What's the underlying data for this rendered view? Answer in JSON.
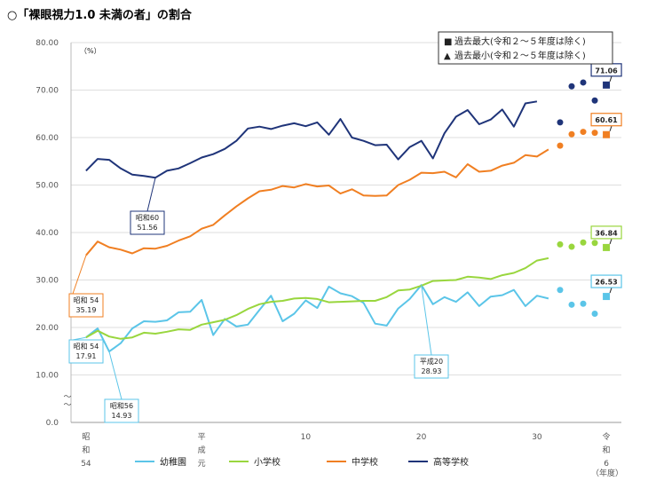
{
  "title": "○「裸眼視力1.0 未満の者」の割合",
  "chart_data": {
    "type": "line",
    "unit_label": "（%）",
    "ylim": [
      0,
      80
    ],
    "yticks": [
      "0.0",
      "10.00",
      "20.00",
      "30.00",
      "40.00",
      "50.00",
      "60.00",
      "70.00",
      "80.00"
    ],
    "x_axis_labels": [
      {
        "x": 1979,
        "text": "昭\n和\n54"
      },
      {
        "x": 1989,
        "text": "平\n成\n元"
      },
      {
        "x": 1998,
        "text": "10"
      },
      {
        "x": 2008,
        "text": "20"
      },
      {
        "x": 2018,
        "text": "30"
      },
      {
        "x": 2024,
        "text": "令\n和\n6"
      }
    ],
    "x_unit": "（年度）",
    "years": [
      1979,
      1980,
      1981,
      1982,
      1983,
      1984,
      1985,
      1986,
      1987,
      1988,
      1989,
      1990,
      1991,
      1992,
      1993,
      1994,
      1995,
      1996,
      1997,
      1998,
      1999,
      2000,
      2001,
      2002,
      2003,
      2004,
      2005,
      2006,
      2007,
      2008,
      2009,
      2010,
      2011,
      2012,
      2013,
      2014,
      2015,
      2016,
      2017,
      2018,
      2019
    ],
    "series": [
      {
        "name": "幼稚園",
        "color": "#5bc5e8",
        "values": [
          17.91,
          19.8,
          14.93,
          16.7,
          19.8,
          21.3,
          21.2,
          21.5,
          23.2,
          23.3,
          25.8,
          18.4,
          21.8,
          20.2,
          20.6,
          23.7,
          26.7,
          21.3,
          22.9,
          25.7,
          24.1,
          28.6,
          27.2,
          26.6,
          25.2,
          20.8,
          20.4,
          24.0,
          26.0,
          28.93,
          24.9,
          26.4,
          25.4,
          27.4,
          24.5,
          26.5,
          26.8,
          27.9,
          24.5,
          26.7,
          26.1
        ],
        "extra": {
          "years": [
            2020,
            2021,
            2022,
            2023,
            2024
          ],
          "values": [
            27.9,
            24.8,
            25.0,
            22.9,
            26.53
          ]
        },
        "annotations": [
          {
            "x": 1979,
            "text": "昭和 54\n17.91"
          },
          {
            "x": 1981,
            "text": "昭和56\n14.93"
          },
          {
            "x": 2008,
            "text": "平成20\n28.93"
          },
          {
            "x": 2024,
            "text": "26.53"
          }
        ]
      },
      {
        "name": "小学校",
        "color": "#99d63e",
        "values": [
          17.91,
          19.3,
          18.1,
          17.6,
          17.9,
          18.9,
          18.7,
          19.1,
          19.6,
          19.5,
          20.6,
          21.1,
          21.6,
          22.6,
          23.9,
          24.9,
          25.4,
          25.6,
          26.1,
          26.2,
          26.0,
          25.3,
          25.4,
          25.5,
          25.6,
          25.6,
          26.4,
          27.8,
          28.0,
          28.8,
          29.8,
          29.9,
          30.0,
          30.7,
          30.5,
          30.2,
          31.0,
          31.5,
          32.5,
          34.1,
          34.6
        ],
        "extra": {
          "years": [
            2020,
            2021,
            2022,
            2023,
            2024
          ],
          "values": [
            37.5,
            37.0,
            37.9,
            37.8,
            36.84
          ]
        },
        "annotations": [
          {
            "x": 2024,
            "text": "36.84"
          }
        ]
      },
      {
        "name": "中学校",
        "color": "#f07f22",
        "values": [
          35.19,
          38.1,
          36.9,
          36.4,
          35.6,
          36.7,
          36.6,
          37.2,
          38.3,
          39.2,
          40.8,
          41.6,
          43.6,
          45.5,
          47.2,
          48.7,
          49.0,
          49.8,
          49.5,
          50.2,
          49.7,
          49.9,
          48.2,
          49.1,
          47.8,
          47.7,
          47.8,
          50.0,
          51.1,
          52.6,
          52.5,
          52.8,
          51.6,
          54.4,
          52.8,
          53.0,
          54.1,
          54.7,
          56.3,
          56.0,
          57.5
        ],
        "extra": {
          "years": [
            2020,
            2021,
            2022,
            2023,
            2024
          ],
          "values": [
            58.3,
            60.7,
            61.2,
            61.0,
            60.61
          ]
        },
        "annotations": [
          {
            "x": 1979,
            "text": "昭和 54\n35.19"
          },
          {
            "x": 2024,
            "text": "60.61"
          }
        ]
      },
      {
        "name": "高等学校",
        "color": "#1f3479",
        "values": [
          53.0,
          55.5,
          55.3,
          53.5,
          52.2,
          51.9,
          51.56,
          53.0,
          53.5,
          54.6,
          55.8,
          56.5,
          57.6,
          59.3,
          61.9,
          62.3,
          61.8,
          62.5,
          63.0,
          62.4,
          63.2,
          60.6,
          63.9,
          60.0,
          59.3,
          58.4,
          58.5,
          55.4,
          58.0,
          59.3,
          55.6,
          60.9,
          64.4,
          65.8,
          62.8,
          63.8,
          65.9,
          62.3,
          67.2,
          67.6,
          null
        ],
        "extra": {
          "years": [
            2020,
            2021,
            2022,
            2023,
            2024
          ],
          "values": [
            63.2,
            70.8,
            71.6,
            67.8,
            71.06
          ]
        },
        "annotations": [
          {
            "x": 1985,
            "text": "昭和60\n51.56"
          },
          {
            "x": 2024,
            "text": "71.06"
          }
        ]
      }
    ],
    "legend_box": [
      {
        "marker": "■",
        "text": "過去最大(令和２～５年度は除く)"
      },
      {
        "marker": "▲",
        "text": "過去最小(令和２～５年度は除く)"
      }
    ],
    "axis_break": "〜\n〜",
    "grid": true
  }
}
